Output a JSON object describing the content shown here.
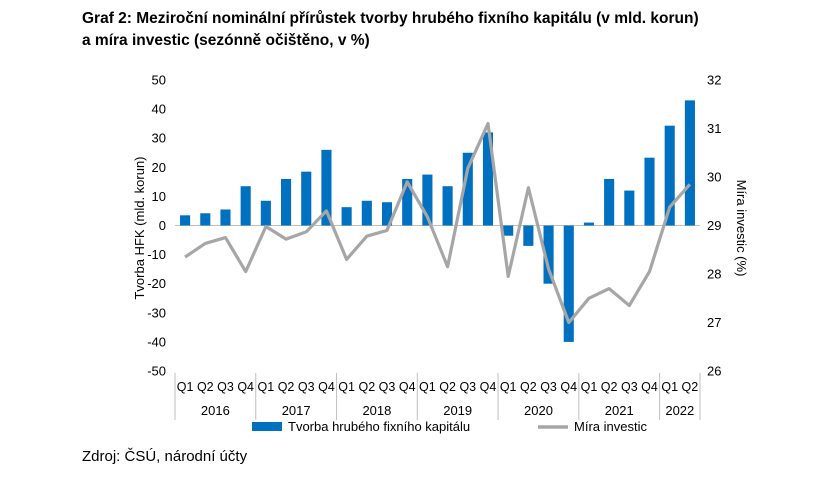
{
  "chart_data": {
    "type": "bar",
    "title_line1": "Graf 2: Meziroční nominální přírůstek tvorby hrubého fixního kapitálu (v mld. korun)",
    "title_line2": "a míra investic (sezónně očištěno, v %)",
    "source": "Zdroj: ČSÚ, národní účty",
    "ylabel_left": "Tvorba HFK (mld. korun)",
    "ylabel_right": "Míra investic (%)",
    "ylim_left": [
      -50,
      50
    ],
    "yticks_left": [
      "50",
      "40",
      "30",
      "20",
      "10",
      "0",
      "-10",
      "-20",
      "-30",
      "-40",
      "-50"
    ],
    "ylim_right": [
      26,
      32
    ],
    "yticks_right": [
      "32",
      "31",
      "30",
      "29",
      "28",
      "27",
      "26"
    ],
    "quarters": [
      "Q1",
      "Q2",
      "Q3",
      "Q4",
      "Q1",
      "Q2",
      "Q3",
      "Q4",
      "Q1",
      "Q2",
      "Q3",
      "Q4",
      "Q1",
      "Q2",
      "Q3",
      "Q4",
      "Q1",
      "Q2",
      "Q3",
      "Q4",
      "Q1",
      "Q2",
      "Q3",
      "Q4",
      "Q1",
      "Q2"
    ],
    "years": [
      {
        "label": "2016",
        "span": 4
      },
      {
        "label": "2017",
        "span": 4
      },
      {
        "label": "2018",
        "span": 4
      },
      {
        "label": "2019",
        "span": 4
      },
      {
        "label": "2020",
        "span": 4
      },
      {
        "label": "2021",
        "span": 4
      },
      {
        "label": "2022",
        "span": 2
      }
    ],
    "series": [
      {
        "name": "Tvorba hrubého fixního kapitálu",
        "kind": "bar",
        "axis": "left",
        "color": "#0070c0",
        "values": [
          3.5,
          4.2,
          5.5,
          13.5,
          8.5,
          16,
          18.5,
          26,
          6.3,
          8.5,
          8,
          16,
          17.5,
          13.5,
          25,
          32,
          -3.5,
          -7,
          -20,
          -40,
          1,
          16,
          12,
          23.3,
          34.3,
          43
        ]
      },
      {
        "name": "Míra investic",
        "kind": "line",
        "axis": "right",
        "color": "#a6a6a6",
        "values": [
          28.35,
          28.63,
          28.75,
          28.05,
          28.98,
          28.72,
          28.87,
          29.3,
          28.3,
          28.78,
          28.9,
          29.9,
          29.18,
          28.15,
          30.18,
          31.1,
          27.95,
          29.78,
          28.1,
          27,
          27.5,
          27.7,
          27.35,
          28.05,
          29.38,
          29.85
        ]
      }
    ],
    "legend_position": "bottom"
  }
}
